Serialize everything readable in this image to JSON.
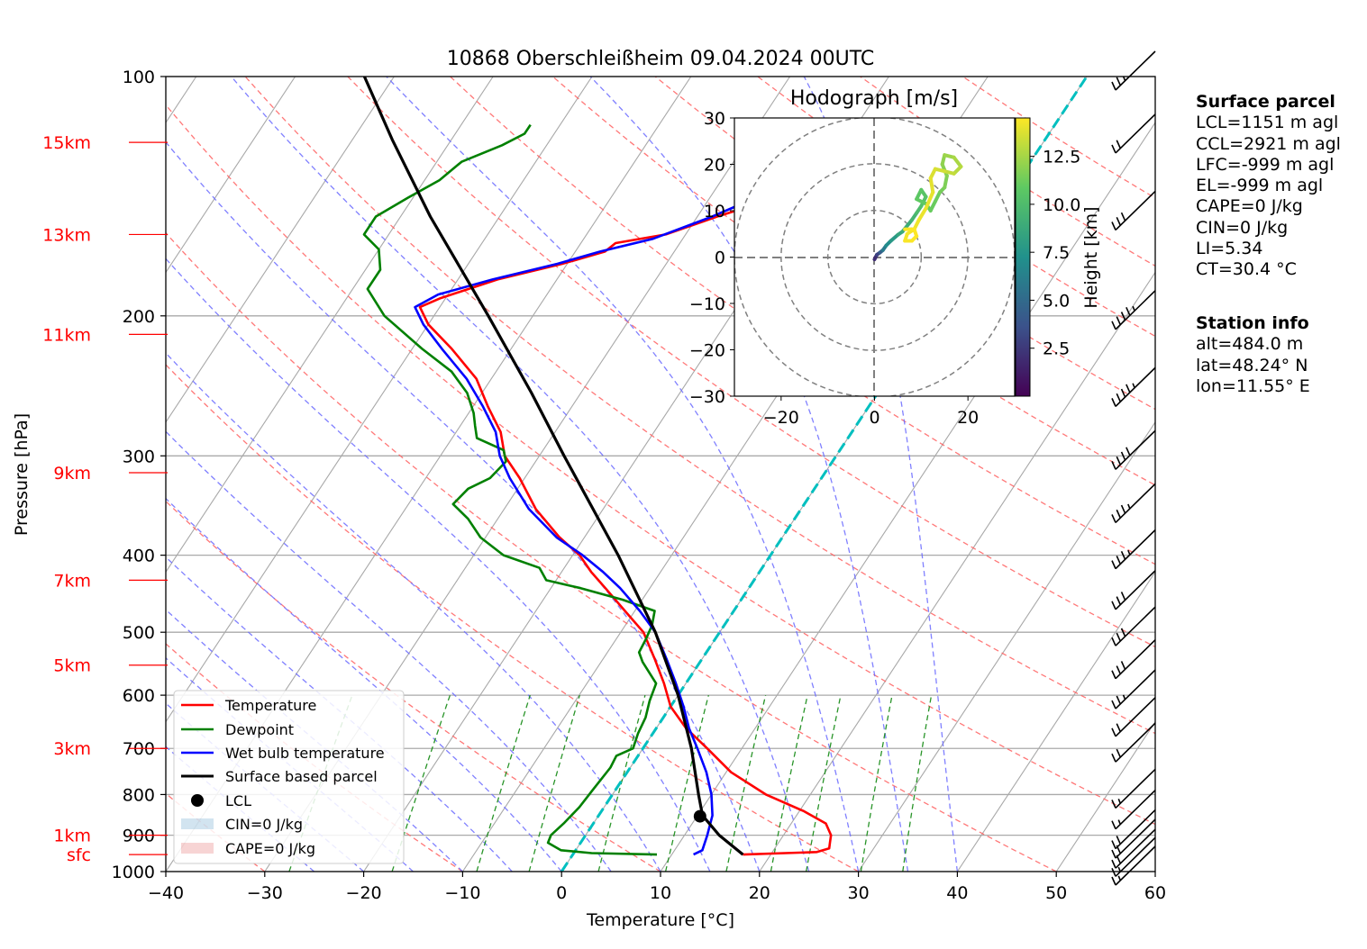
{
  "chart_data": {
    "type": "skewt-logp",
    "title": "10868 Oberschleißheim 09.04.2024 00UTC",
    "xlabel": "Temperature [°C]",
    "ylabel": "Pressure [hPa]",
    "xlim": [
      -40,
      60
    ],
    "ylim": [
      1000,
      100
    ],
    "x_ticks": [
      "−40",
      "−30",
      "−20",
      "−10",
      "0",
      "10",
      "20",
      "30",
      "40",
      "50",
      "60"
    ],
    "y_ticks": [
      {
        "p": 100,
        "label": "100"
      },
      {
        "p": 200,
        "label": "200"
      },
      {
        "p": 300,
        "label": "300"
      },
      {
        "p": 400,
        "label": "400"
      },
      {
        "p": 500,
        "label": "500"
      },
      {
        "p": 600,
        "label": "600"
      },
      {
        "p": 700,
        "label": "700"
      },
      {
        "p": 800,
        "label": "800"
      },
      {
        "p": 900,
        "label": "900"
      },
      {
        "p": 1000,
        "label": "1000"
      }
    ],
    "height_labels": [
      {
        "label": "15km",
        "p": 121
      },
      {
        "label": "13km",
        "p": 158
      },
      {
        "label": "11km",
        "p": 211
      },
      {
        "label": "9km",
        "p": 315
      },
      {
        "label": "7km",
        "p": 430
      },
      {
        "label": "5km",
        "p": 550
      },
      {
        "label": "3km",
        "p": 700
      },
      {
        "label": "1km",
        "p": 900
      },
      {
        "label": "sfc",
        "p": 952
      }
    ],
    "series": [
      {
        "name": "Temperature",
        "color": "#ff0000",
        "points": [
          [
            952,
            17.2
          ],
          [
            945,
            24.5
          ],
          [
            935,
            25.5
          ],
          [
            920,
            25.2
          ],
          [
            900,
            24.8
          ],
          [
            870,
            23.5
          ],
          [
            840,
            20.5
          ],
          [
            800,
            15.5
          ],
          [
            750,
            10.5
          ],
          [
            700,
            6.5
          ],
          [
            660,
            3.0
          ],
          [
            620,
            0.0
          ],
          [
            580,
            -2.2
          ],
          [
            540,
            -4.8
          ],
          [
            500,
            -7.7
          ],
          [
            470,
            -11.0
          ],
          [
            440,
            -14.5
          ],
          [
            420,
            -17.0
          ],
          [
            400,
            -19.3
          ],
          [
            380,
            -22.5
          ],
          [
            350,
            -26.8
          ],
          [
            320,
            -30.5
          ],
          [
            300,
            -33.5
          ],
          [
            280,
            -35.5
          ],
          [
            260,
            -38.5
          ],
          [
            240,
            -41.5
          ],
          [
            220,
            -46.0
          ],
          [
            205,
            -50.0
          ],
          [
            195,
            -52.0
          ],
          [
            190,
            -50.5
          ],
          [
            180,
            -46.0
          ],
          [
            172,
            -40.5
          ],
          [
            166,
            -37.0
          ],
          [
            162,
            -36.5
          ],
          [
            158,
            -32.0
          ],
          [
            150,
            -28.0
          ],
          [
            145,
            -25.0
          ],
          [
            140,
            -24.0
          ],
          [
            135,
            -24.5
          ],
          [
            130,
            -25.5
          ],
          [
            125,
            -26.0
          ],
          [
            120,
            -24.0
          ],
          [
            117,
            -22.0
          ],
          [
            115,
            -21.8
          ]
        ]
      },
      {
        "name": "Dewpoint",
        "color": "#008000",
        "points": [
          [
            952,
            8.5
          ],
          [
            948,
            1.8
          ],
          [
            940,
            -1.5
          ],
          [
            920,
            -3.3
          ],
          [
            900,
            -3.5
          ],
          [
            870,
            -3.0
          ],
          [
            830,
            -2.5
          ],
          [
            790,
            -2.3
          ],
          [
            740,
            -2.0
          ],
          [
            715,
            -2.2
          ],
          [
            700,
            -1.0
          ],
          [
            670,
            -1.5
          ],
          [
            640,
            -1.8
          ],
          [
            610,
            -2.5
          ],
          [
            580,
            -3.0
          ],
          [
            545,
            -5.8
          ],
          [
            530,
            -6.8
          ],
          [
            510,
            -7.0
          ],
          [
            490,
            -7.3
          ],
          [
            470,
            -8.0
          ],
          [
            455,
            -12.0
          ],
          [
            440,
            -17.0
          ],
          [
            430,
            -21.0
          ],
          [
            415,
            -22.5
          ],
          [
            400,
            -27.0
          ],
          [
            380,
            -30.5
          ],
          [
            360,
            -33.0
          ],
          [
            345,
            -35.5
          ],
          [
            330,
            -35.0
          ],
          [
            320,
            -33.5
          ],
          [
            305,
            -33.0
          ],
          [
            295,
            -34.0
          ],
          [
            285,
            -37.5
          ],
          [
            275,
            -38.5
          ],
          [
            265,
            -39.5
          ],
          [
            250,
            -41.5
          ],
          [
            235,
            -44.5
          ],
          [
            220,
            -49.0
          ],
          [
            200,
            -55.0
          ],
          [
            185,
            -58.5
          ],
          [
            175,
            -58.5
          ],
          [
            165,
            -60.0
          ],
          [
            158,
            -62.5
          ],
          [
            150,
            -62.5
          ],
          [
            142,
            -60.5
          ],
          [
            135,
            -58.5
          ],
          [
            128,
            -57.5
          ],
          [
            122,
            -54.5
          ],
          [
            118,
            -53.0
          ],
          [
            115,
            -53.0
          ]
        ]
      },
      {
        "name": "Wet bulb temperature",
        "color": "#0000ff",
        "points": [
          [
            952,
            12.2
          ],
          [
            940,
            12.8
          ],
          [
            900,
            12.3
          ],
          [
            850,
            11.5
          ],
          [
            800,
            10.0
          ],
          [
            750,
            8.0
          ],
          [
            700,
            5.5
          ],
          [
            660,
            3.3
          ],
          [
            620,
            1.3
          ],
          [
            580,
            -1.0
          ],
          [
            540,
            -3.6
          ],
          [
            500,
            -6.5
          ],
          [
            470,
            -9.5
          ],
          [
            440,
            -13.0
          ],
          [
            420,
            -15.8
          ],
          [
            400,
            -19.0
          ],
          [
            380,
            -22.8
          ],
          [
            350,
            -27.5
          ],
          [
            320,
            -31.5
          ],
          [
            300,
            -34.0
          ],
          [
            280,
            -36.0
          ],
          [
            260,
            -39.0
          ],
          [
            240,
            -42.5
          ],
          [
            220,
            -47.0
          ],
          [
            205,
            -50.5
          ],
          [
            195,
            -52.5
          ],
          [
            188,
            -51.0
          ],
          [
            180,
            -46.5
          ],
          [
            172,
            -41.0
          ],
          [
            166,
            -37.5
          ],
          [
            160,
            -33.0
          ],
          [
            150,
            -28.5
          ],
          [
            140,
            -24.5
          ],
          [
            130,
            -26.0
          ],
          [
            120,
            -24.5
          ],
          [
            115,
            -22.0
          ]
        ]
      },
      {
        "name": "Surface based parcel",
        "color": "#000000",
        "points": [
          [
            952,
            17.2
          ],
          [
            900,
            13.5
          ],
          [
            850,
            10.5
          ],
          [
            800,
            8.7
          ],
          [
            700,
            4.9
          ],
          [
            600,
            0.0
          ],
          [
            500,
            -6.5
          ],
          [
            400,
            -15.4
          ],
          [
            300,
            -27.5
          ],
          [
            250,
            -35.0
          ],
          [
            200,
            -44.5
          ],
          [
            150,
            -57.0
          ],
          [
            120,
            -66.0
          ],
          [
            100,
            -73.0
          ]
        ]
      }
    ],
    "lcl": {
      "p": 852,
      "t": 10.3,
      "label": "LCL"
    },
    "legend": [
      "Temperature",
      "Dewpoint",
      "Wet bulb temperature",
      "Surface based parcel",
      "LCL",
      "CIN=0 J/kg",
      "CAPE=0 J/kg"
    ],
    "legend_position": "lower-left",
    "wind_barbs": [
      {
        "p": 1000,
        "speed_kt": 15,
        "dir_deg": 10
      },
      {
        "p": 975,
        "speed_kt": 15,
        "dir_deg": 20
      },
      {
        "p": 952,
        "speed_kt": 20,
        "dir_deg": 30
      },
      {
        "p": 925,
        "speed_kt": 20,
        "dir_deg": 40
      },
      {
        "p": 900,
        "speed_kt": 20,
        "dir_deg": 50
      },
      {
        "p": 850,
        "speed_kt": 15,
        "dir_deg": 60
      },
      {
        "p": 800,
        "speed_kt": 15,
        "dir_deg": 50
      },
      {
        "p": 700,
        "speed_kt": 20,
        "dir_deg": 30
      },
      {
        "p": 650,
        "speed_kt": 20,
        "dir_deg": 30
      },
      {
        "p": 600,
        "speed_kt": 25,
        "dir_deg": 25
      },
      {
        "p": 550,
        "speed_kt": 30,
        "dir_deg": 25
      },
      {
        "p": 500,
        "speed_kt": 30,
        "dir_deg": 20
      },
      {
        "p": 450,
        "speed_kt": 30,
        "dir_deg": 30
      },
      {
        "p": 400,
        "speed_kt": 35,
        "dir_deg": 30
      },
      {
        "p": 350,
        "speed_kt": 35,
        "dir_deg": 30
      },
      {
        "p": 300,
        "speed_kt": 40,
        "dir_deg": 25
      },
      {
        "p": 250,
        "speed_kt": 45,
        "dir_deg": 30
      },
      {
        "p": 200,
        "speed_kt": 45,
        "dir_deg": 25
      },
      {
        "p": 150,
        "speed_kt": 30,
        "dir_deg": 30
      },
      {
        "p": 120,
        "speed_kt": 20,
        "dir_deg": 35
      },
      {
        "p": 100,
        "speed_kt": 25,
        "dir_deg": 30
      }
    ],
    "hodograph": {
      "title": "Hodograph [m/s]",
      "xlim": [
        -30,
        30
      ],
      "ylim": [
        -30,
        30
      ],
      "x_ticks": [
        "−20",
        "0",
        "20"
      ],
      "y_ticks": [
        "30",
        "20",
        "10",
        "0",
        "−10",
        "−20",
        "−30"
      ],
      "rings": [
        10,
        20,
        30
      ],
      "colorbar_label": "Height [km]",
      "colorbar_ticks": [
        "2.5",
        "5.0",
        "7.5",
        "10.0",
        "12.5"
      ],
      "colorbar_range": [
        0,
        14.5
      ],
      "points": [
        [
          0,
          -0.5,
          2.0
        ],
        [
          0.5,
          0.5,
          3.0
        ],
        [
          1.2,
          1.0,
          4.5
        ],
        [
          1.8,
          1.5,
          6.0
        ],
        [
          2.5,
          2.5,
          7.0
        ],
        [
          3.5,
          3.5,
          7.8
        ],
        [
          5.0,
          4.8,
          8.5
        ],
        [
          6.0,
          5.5,
          9.0
        ],
        [
          8.0,
          8.0,
          9.5
        ],
        [
          9.0,
          9.5,
          10.0
        ],
        [
          10.0,
          11.0,
          10.3
        ],
        [
          11.0,
          13.0,
          10.5
        ],
        [
          10.0,
          14.5,
          10.7
        ],
        [
          9.0,
          12.5,
          10.9
        ],
        [
          11.0,
          11.5,
          11.0
        ],
        [
          12.0,
          10.0,
          11.1
        ],
        [
          13.0,
          12.0,
          11.2
        ],
        [
          14.0,
          14.0,
          11.4
        ],
        [
          15.0,
          15.0,
          11.6
        ],
        [
          15.5,
          17.5,
          11.8
        ],
        [
          14.5,
          20.0,
          12.0
        ],
        [
          15.0,
          22.0,
          12.3
        ],
        [
          17.0,
          21.5,
          12.6
        ],
        [
          18.5,
          19.5,
          12.9
        ],
        [
          17.0,
          18.0,
          13.2
        ],
        [
          15.0,
          18.5,
          13.5
        ],
        [
          13.0,
          19.0,
          13.7
        ],
        [
          12.0,
          17.0,
          13.9
        ],
        [
          12.5,
          14.0,
          14.0
        ],
        [
          11.0,
          10.5,
          14.1
        ],
        [
          9.5,
          8.0,
          14.2
        ],
        [
          8.5,
          6.0,
          14.3
        ],
        [
          7.0,
          5.0,
          14.35
        ],
        [
          6.5,
          3.5,
          14.4
        ],
        [
          8.0,
          3.5,
          14.45
        ],
        [
          9.0,
          4.5,
          14.5
        ],
        [
          8.5,
          6.0,
          14.5
        ],
        [
          6.5,
          6.0,
          14.5
        ]
      ]
    }
  },
  "surface_parcel": {
    "heading": "Surface parcel",
    "lines": [
      "LCL=1151 m agl",
      "CCL=2921 m agl",
      "LFC=-999 m agl",
      "EL=-999 m agl",
      "CAPE=0 J/kg",
      "CIN=0 J/kg",
      "LI=5.34",
      "CT=30.4 °C"
    ]
  },
  "station_info": {
    "heading": "Station info",
    "lines": [
      "alt=484.0 m",
      "lat=48.24° N",
      "lon=11.55° E"
    ]
  }
}
